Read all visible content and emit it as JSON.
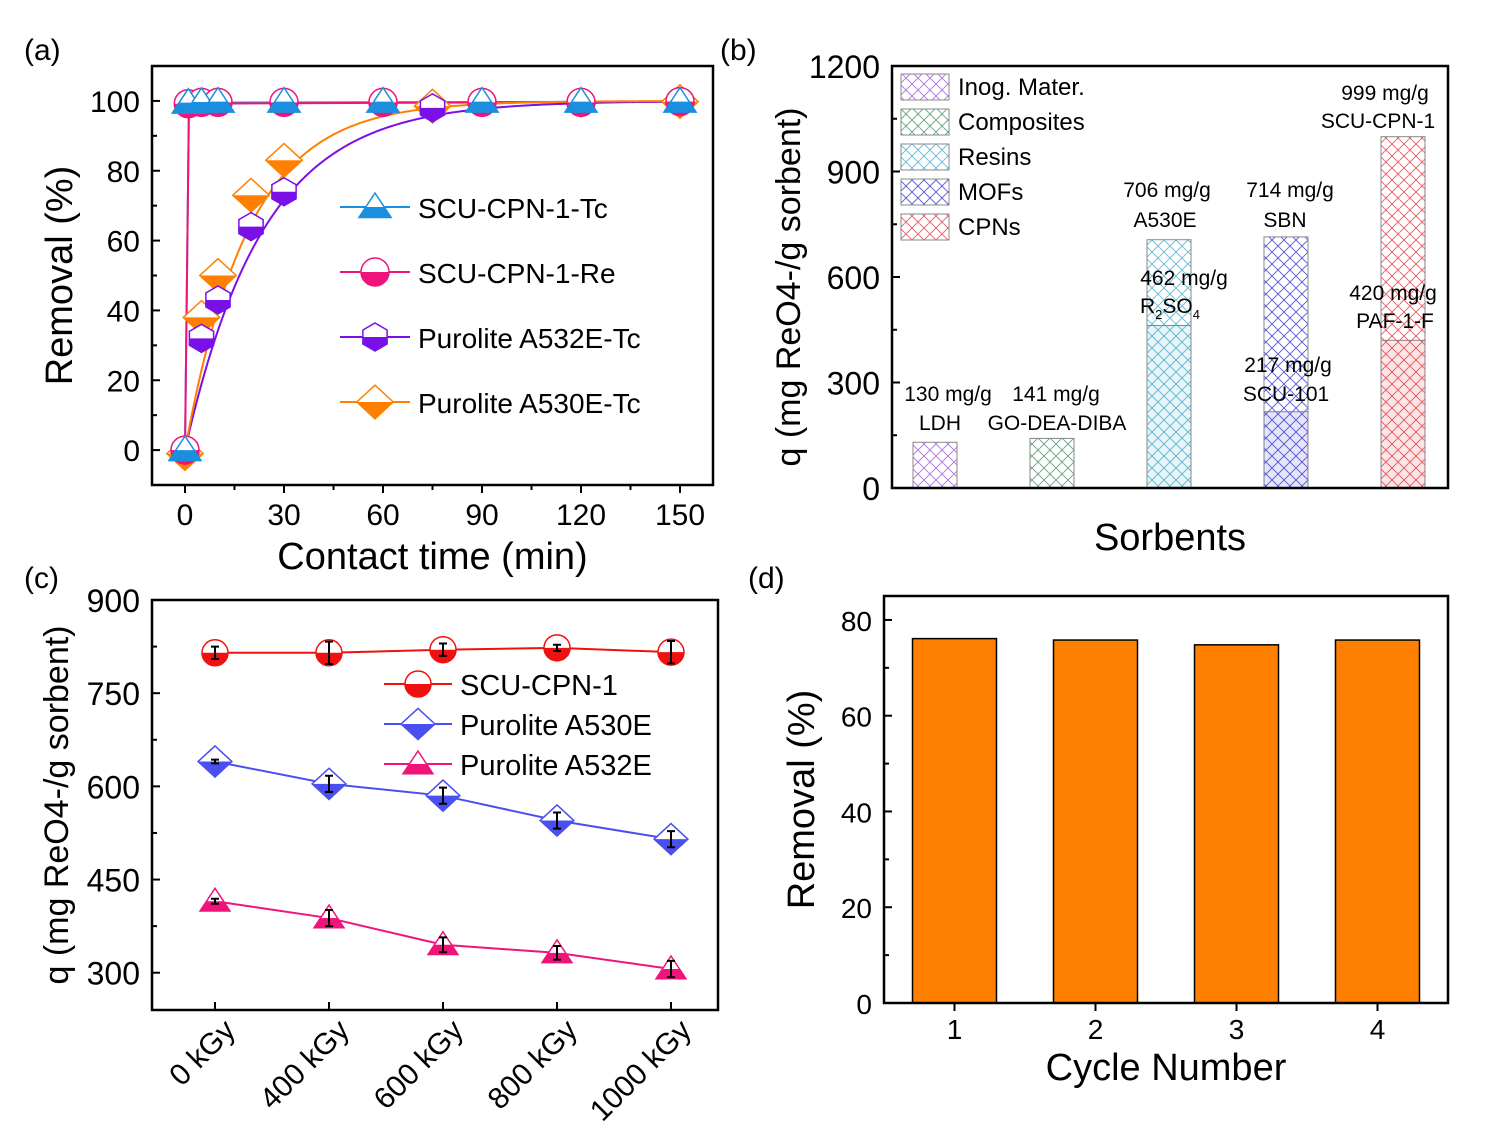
{
  "chart_data": [
    {
      "panel": "(a)",
      "type": "line",
      "xlabel": "Contact time (min)",
      "ylabel": "Removal (%)",
      "xlim": [
        -10,
        160
      ],
      "ylim": [
        -10,
        110
      ],
      "xticks": [
        0,
        30,
        60,
        90,
        120,
        150
      ],
      "yticks": [
        0,
        20,
        40,
        60,
        80,
        100
      ],
      "legend": "center-right",
      "series": [
        {
          "name": "SCU-CPN-1-Tc",
          "color": "#1a8fe0",
          "marker": "triangle",
          "x": [
            0,
            1,
            5,
            10,
            30,
            60,
            90,
            120,
            150
          ],
          "y": [
            0,
            99.5,
            99.7,
            99.8,
            99.8,
            99.8,
            99.8,
            99.8,
            99.8
          ]
        },
        {
          "name": "SCU-CPN-1-Re",
          "color": "#f0147a",
          "marker": "circle",
          "x": [
            0,
            1,
            5,
            10,
            30,
            60,
            90,
            120,
            150
          ],
          "y": [
            0,
            99.2,
            99.6,
            99.6,
            99.6,
            99.6,
            99.6,
            99.6,
            99.8
          ]
        },
        {
          "name": "Purolite A532E-Tc",
          "color": "#7a10e8",
          "marker": "hexagon",
          "x": [
            0,
            5,
            10,
            20,
            30,
            75,
            120,
            150
          ],
          "y": [
            0,
            32,
            43,
            64,
            74,
            98,
            99.5,
            99.8
          ]
        },
        {
          "name": "Purolite A530E-Tc",
          "color": "#ff8000",
          "marker": "diamond",
          "x": [
            0,
            5,
            10,
            20,
            30,
            75,
            150
          ],
          "y": [
            -1,
            38,
            50,
            73,
            83,
            98.5,
            99.8
          ]
        }
      ]
    },
    {
      "panel": "(b)",
      "type": "bar",
      "xlabel": "Sorbents",
      "ylabel": "q (mg ReO4-/g sorbent)",
      "ylim": [
        0,
        1200
      ],
      "yticks": [
        0,
        300,
        600,
        900,
        1200
      ],
      "legend": "top-left",
      "legend_entries": [
        {
          "name": "Inog. Mater.",
          "color": "#9b4fe0"
        },
        {
          "name": "Composites",
          "color": "#3f8a5a"
        },
        {
          "name": "Resins",
          "color": "#3aa8c8"
        },
        {
          "name": "MOFs",
          "color": "#2a2ad0"
        },
        {
          "name": "CPNs",
          "color": "#e0303a"
        }
      ],
      "bars": [
        {
          "group": "Inog. Mater.",
          "top": {
            "value": 130,
            "label": "130 mg/g",
            "name": "LDH",
            "label_color": "#8a2be2"
          }
        },
        {
          "group": "Composites",
          "top": {
            "value": 141,
            "label": "141 mg/g",
            "name": "GO-DEA-DIBA",
            "label_color": "#1f8a1f"
          }
        },
        {
          "group": "Resins",
          "top": {
            "value": 706,
            "label": "706 mg/g",
            "name": "A530E",
            "label_color": "#4a9fe0"
          },
          "inner": {
            "value": 462,
            "label": "462 mg/g",
            "name": "R",
            "sub1": "2",
            "name2": "SO",
            "sub2": "4",
            "label_color": "#f08020"
          }
        },
        {
          "group": "MOFs",
          "top": {
            "value": 714,
            "label": "714 mg/g",
            "name": "SBN",
            "label_color": "#1a1ad0"
          },
          "inner": {
            "value": 217,
            "label": "217 mg/g",
            "name": "SCU-101",
            "label_color": "#f08020"
          }
        },
        {
          "group": "CPNs",
          "top": {
            "value": 999,
            "label": "999 mg/g",
            "name": "SCU-CPN-1",
            "label_color": "#e0101a"
          },
          "inner": {
            "value": 420,
            "label": "420 mg/g",
            "name": "PAF-1-F",
            "label_color": "#000000"
          }
        }
      ]
    },
    {
      "panel": "(c)",
      "type": "line",
      "ylabel": "q (mg ReO4-/g sorbent)",
      "categories": [
        "0 kGy",
        "400 kGy",
        "600 kGy",
        "800 kGy",
        "1000 kGy"
      ],
      "ylim": [
        240,
        900
      ],
      "yticks": [
        300,
        450,
        600,
        750,
        900
      ],
      "legend": "top-right",
      "series": [
        {
          "name": "SCU-CPN-1",
          "color": "#f01010",
          "marker": "circle",
          "values": [
            815,
            815,
            820,
            823,
            816
          ],
          "err": [
            10,
            18,
            10,
            5,
            18
          ]
        },
        {
          "name": "Purolite A530E",
          "color": "#4a50f0",
          "marker": "diamond",
          "values": [
            640,
            604,
            585,
            545,
            515
          ],
          "err": [
            3,
            13,
            13,
            13,
            13
          ]
        },
        {
          "name": "Purolite A532E",
          "color": "#f0147a",
          "marker": "triangle",
          "values": [
            415,
            388,
            345,
            332,
            306
          ],
          "err": [
            4,
            13,
            12,
            11,
            13
          ]
        }
      ]
    },
    {
      "panel": "(d)",
      "type": "bar",
      "xlabel": "Cycle Number",
      "ylabel": "Removal (%)",
      "categories": [
        "1",
        "2",
        "3",
        "4"
      ],
      "values": [
        76.1,
        75.8,
        74.8,
        75.8
      ],
      "color": "#ff8000",
      "ylim": [
        0,
        85
      ],
      "yticks": [
        0,
        20,
        40,
        60,
        80
      ]
    }
  ]
}
